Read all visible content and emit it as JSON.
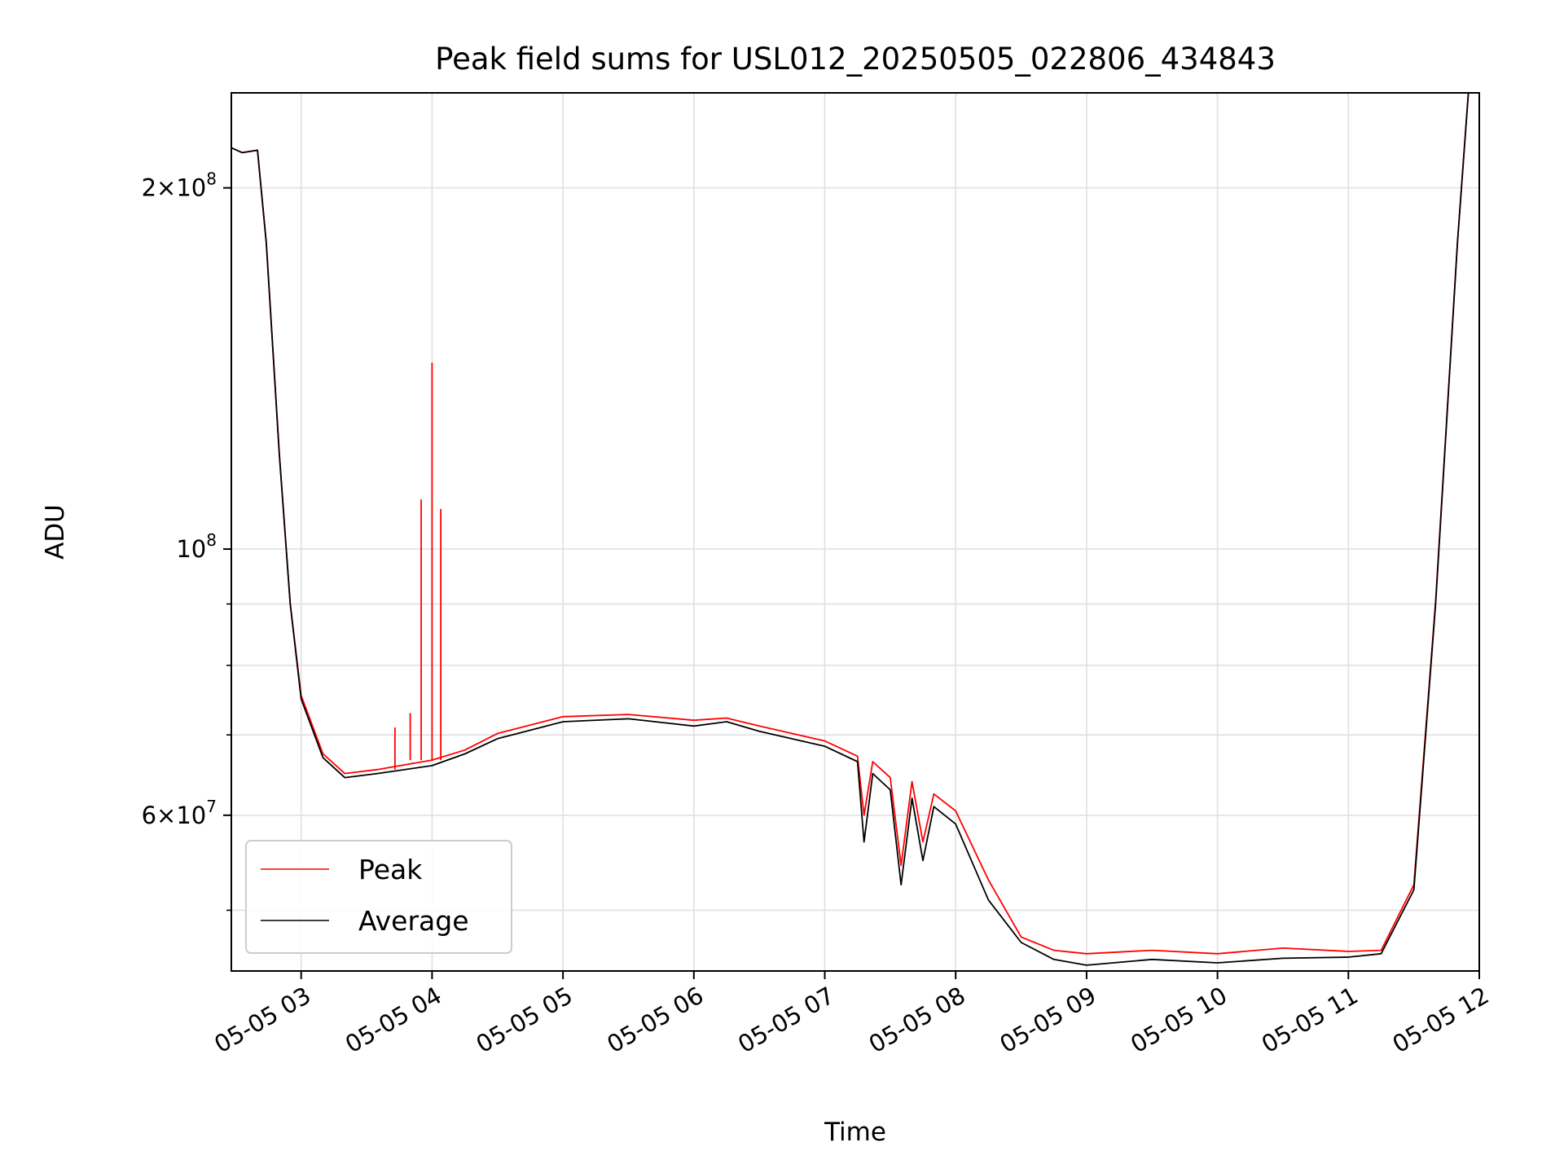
{
  "chart_data": {
    "type": "line",
    "title": "Peak field sums for USL012_20250505_022806_434843",
    "xlabel": "Time",
    "ylabel": "ADU",
    "yscale": "log",
    "xlim": [
      "2025-05-05T02:28",
      "2025-05-05T12:00"
    ],
    "ylim": [
      44500000,
      240000000
    ],
    "grid": true,
    "legend": {
      "position": "lower-left",
      "entries": [
        "Peak",
        "Average"
      ]
    },
    "x_ticks": [
      {
        "value": "2025-05-05T03:00",
        "label": "05-05 03"
      },
      {
        "value": "2025-05-05T04:00",
        "label": "05-05 04"
      },
      {
        "value": "2025-05-05T05:00",
        "label": "05-05 05"
      },
      {
        "value": "2025-05-05T06:00",
        "label": "05-05 06"
      },
      {
        "value": "2025-05-05T07:00",
        "label": "05-05 07"
      },
      {
        "value": "2025-05-05T08:00",
        "label": "05-05 08"
      },
      {
        "value": "2025-05-05T09:00",
        "label": "05-05 09"
      },
      {
        "value": "2025-05-05T10:00",
        "label": "05-05 10"
      },
      {
        "value": "2025-05-05T11:00",
        "label": "05-05 11"
      },
      {
        "value": "2025-05-05T12:00",
        "label": "05-05 12"
      }
    ],
    "y_major_ticks": [
      {
        "value": 60000000,
        "base": "6",
        "exp": "7"
      },
      {
        "value": 100000000,
        "base": "",
        "exp": "8"
      },
      {
        "value": 200000000,
        "base": "2",
        "exp": "8"
      }
    ],
    "y_minor_ticks": [
      50000000,
      70000000,
      80000000,
      90000000
    ],
    "series": [
      {
        "name": "Average",
        "color": "#000000",
        "points": [
          [
            "2025-05-05T02:28",
            216000000
          ],
          [
            "2025-05-05T02:33",
            214000000
          ],
          [
            "2025-05-05T02:40",
            215000000
          ],
          [
            "2025-05-05T02:44",
            180000000
          ],
          [
            "2025-05-05T02:50",
            120000000
          ],
          [
            "2025-05-05T02:55",
            90000000
          ],
          [
            "2025-05-05T03:00",
            75000000
          ],
          [
            "2025-05-05T03:10",
            67000000
          ],
          [
            "2025-05-05T03:20",
            64500000
          ],
          [
            "2025-05-05T03:35",
            65000000
          ],
          [
            "2025-05-05T04:00",
            66000000
          ],
          [
            "2025-05-05T04:15",
            67500000
          ],
          [
            "2025-05-05T04:30",
            69500000
          ],
          [
            "2025-05-05T05:00",
            71800000
          ],
          [
            "2025-05-05T05:30",
            72200000
          ],
          [
            "2025-05-05T06:00",
            71200000
          ],
          [
            "2025-05-05T06:15",
            71800000
          ],
          [
            "2025-05-05T06:30",
            70500000
          ],
          [
            "2025-05-05T07:00",
            68500000
          ],
          [
            "2025-05-05T07:15",
            66500000
          ],
          [
            "2025-05-05T07:18",
            57000000
          ],
          [
            "2025-05-05T07:22",
            65000000
          ],
          [
            "2025-05-05T07:30",
            63000000
          ],
          [
            "2025-05-05T07:35",
            52500000
          ],
          [
            "2025-05-05T07:40",
            62000000
          ],
          [
            "2025-05-05T07:45",
            55000000
          ],
          [
            "2025-05-05T07:50",
            61000000
          ],
          [
            "2025-05-05T08:00",
            59000000
          ],
          [
            "2025-05-05T08:15",
            51000000
          ],
          [
            "2025-05-05T08:30",
            47000000
          ],
          [
            "2025-05-05T08:45",
            45500000
          ],
          [
            "2025-05-05T09:00",
            45000000
          ],
          [
            "2025-05-05T09:30",
            45500000
          ],
          [
            "2025-05-05T10:00",
            45200000
          ],
          [
            "2025-05-05T10:30",
            45600000
          ],
          [
            "2025-05-05T11:00",
            45700000
          ],
          [
            "2025-05-05T11:15",
            46000000
          ],
          [
            "2025-05-05T11:30",
            52000000
          ],
          [
            "2025-05-05T11:40",
            90000000
          ],
          [
            "2025-05-05T11:50",
            180000000
          ],
          [
            "2025-05-05T11:55",
            240000000
          ]
        ]
      },
      {
        "name": "Peak",
        "color": "#ff0000",
        "points": [
          [
            "2025-05-05T02:28",
            216000000
          ],
          [
            "2025-05-05T02:33",
            214000000
          ],
          [
            "2025-05-05T02:40",
            215000000
          ],
          [
            "2025-05-05T02:44",
            180000000
          ],
          [
            "2025-05-05T02:50",
            120000000
          ],
          [
            "2025-05-05T02:55",
            90000000
          ],
          [
            "2025-05-05T03:00",
            75500000
          ],
          [
            "2025-05-05T03:10",
            67500000
          ],
          [
            "2025-05-05T03:20",
            65000000
          ],
          [
            "2025-05-05T03:35",
            65500000
          ],
          [
            "2025-05-05T04:00",
            66700000
          ],
          [
            "2025-05-05T04:15",
            68000000
          ],
          [
            "2025-05-05T04:30",
            70200000
          ],
          [
            "2025-05-05T05:00",
            72500000
          ],
          [
            "2025-05-05T05:30",
            72800000
          ],
          [
            "2025-05-05T06:00",
            72000000
          ],
          [
            "2025-05-05T06:15",
            72300000
          ],
          [
            "2025-05-05T06:30",
            71200000
          ],
          [
            "2025-05-05T07:00",
            69200000
          ],
          [
            "2025-05-05T07:15",
            67200000
          ],
          [
            "2025-05-05T07:18",
            60000000
          ],
          [
            "2025-05-05T07:22",
            66500000
          ],
          [
            "2025-05-05T07:30",
            64500000
          ],
          [
            "2025-05-05T07:35",
            54500000
          ],
          [
            "2025-05-05T07:40",
            64000000
          ],
          [
            "2025-05-05T07:45",
            57000000
          ],
          [
            "2025-05-05T07:50",
            62500000
          ],
          [
            "2025-05-05T08:00",
            60500000
          ],
          [
            "2025-05-05T08:15",
            53000000
          ],
          [
            "2025-05-05T08:30",
            47500000
          ],
          [
            "2025-05-05T08:45",
            46300000
          ],
          [
            "2025-05-05T09:00",
            46000000
          ],
          [
            "2025-05-05T09:30",
            46300000
          ],
          [
            "2025-05-05T10:00",
            46000000
          ],
          [
            "2025-05-05T10:30",
            46500000
          ],
          [
            "2025-05-05T11:00",
            46200000
          ],
          [
            "2025-05-05T11:15",
            46300000
          ],
          [
            "2025-05-05T11:30",
            52500000
          ],
          [
            "2025-05-05T11:40",
            90500000
          ],
          [
            "2025-05-05T11:50",
            180000000
          ],
          [
            "2025-05-05T11:55",
            240000000
          ]
        ],
        "spikes": [
          [
            "2025-05-05T03:43",
            71000000
          ],
          [
            "2025-05-05T03:50",
            73000000
          ],
          [
            "2025-05-05T03:55",
            110000000
          ],
          [
            "2025-05-05T04:00",
            143000000
          ],
          [
            "2025-05-05T04:04",
            108000000
          ]
        ]
      }
    ]
  }
}
